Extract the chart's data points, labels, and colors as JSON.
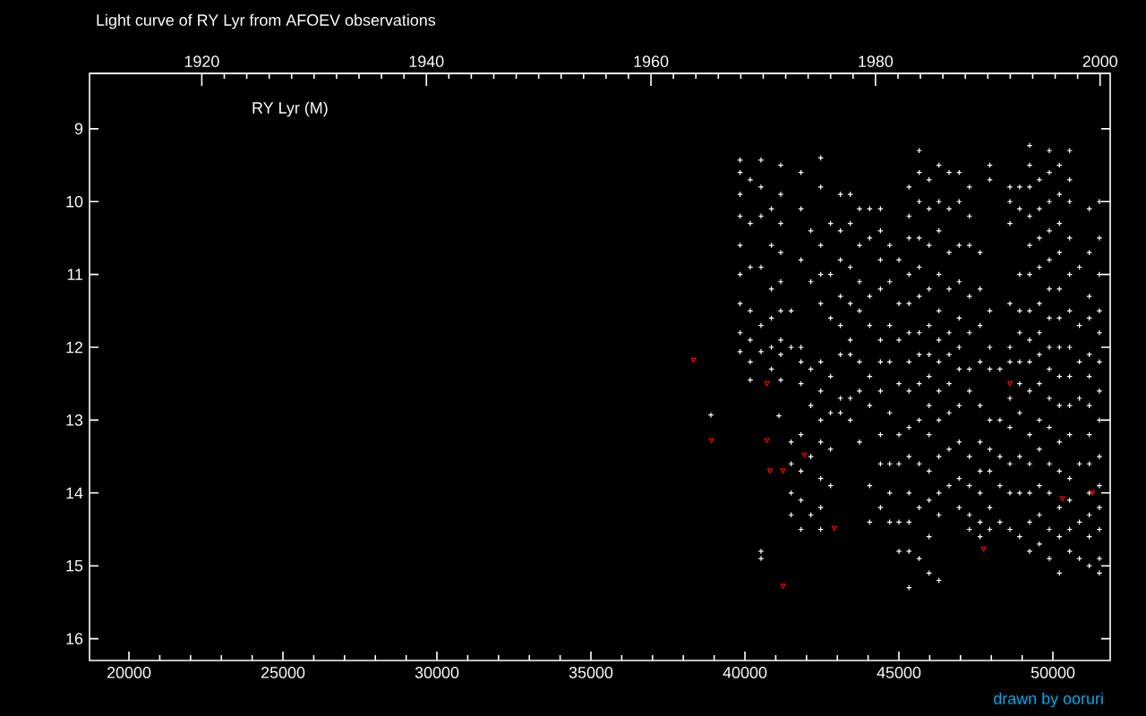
{
  "chart_data": {
    "type": "scatter",
    "title": "Light curve of RY Lyr from AFOEV observations",
    "annotations": [
      "RY Lyr (M)",
      "drawn by ooruri"
    ],
    "xlim": [
      18720,
      51860
    ],
    "xticks": [
      20000,
      25000,
      30000,
      35000,
      40000,
      45000,
      50000
    ],
    "x2lim": [
      1910,
      2000.9
    ],
    "x2ticks": [
      1920,
      1940,
      1960,
      1980,
      2000
    ],
    "ylim": [
      16.3,
      8.24
    ],
    "yticks": [
      9,
      10,
      11,
      12,
      13,
      14,
      15,
      16
    ],
    "marker": "cross",
    "series": [
      {
        "color": "#ffffff",
        "x": [
          38894,
          41103,
          39844,
          39844,
          39844,
          39844,
          39844,
          39844,
          39844,
          39844,
          39844,
          40173,
          40173,
          40173,
          40173,
          40173,
          40173,
          40173,
          40522,
          40522,
          40522,
          40522,
          40522,
          40522,
          40522,
          40522,
          40860,
          40860,
          40860,
          40860,
          40860,
          40860,
          41162,
          41162,
          41162,
          41162,
          41162,
          41162,
          41162,
          41162,
          41162,
          41500,
          41500,
          41500,
          41500,
          41500,
          41500,
          41820,
          41820,
          41820,
          41820,
          41820,
          41820,
          41820,
          41820,
          41820,
          41820,
          42140,
          42140,
          42140,
          42140,
          42140,
          42140,
          42460,
          42460,
          42460,
          42460,
          42460,
          42460,
          42460,
          42460,
          42460,
          42460,
          42460,
          42460,
          42780,
          42780,
          42780,
          42780,
          42780,
          42780,
          42780,
          43100,
          43100,
          43100,
          43100,
          43100,
          43100,
          43100,
          43100,
          43420,
          43420,
          43420,
          43420,
          43420,
          43420,
          43420,
          43420,
          43720,
          43720,
          43720,
          43720,
          43720,
          43720,
          43720,
          44050,
          44050,
          44050,
          44050,
          44050,
          44050,
          44050,
          44050,
          44400,
          44400,
          44400,
          44400,
          44400,
          44400,
          44400,
          44400,
          44400,
          44400,
          44700,
          44700,
          44700,
          44700,
          44700,
          44700,
          44700,
          44700,
          45000,
          45000,
          45000,
          45000,
          45000,
          45000,
          45000,
          45000,
          45328,
          45328,
          45328,
          45328,
          45328,
          45328,
          45328,
          45328,
          45328,
          45328,
          45328,
          45328,
          45328,
          45328,
          45658,
          45658,
          45658,
          45658,
          45658,
          45658,
          45658,
          45658,
          45658,
          45658,
          45658,
          45658,
          45658,
          45980,
          45980,
          45980,
          45980,
          45980,
          45980,
          45980,
          45980,
          45980,
          45980,
          45980,
          45980,
          45980,
          46298,
          46298,
          46298,
          46298,
          46298,
          46298,
          46298,
          46298,
          46298,
          46298,
          46298,
          46298,
          46298,
          46630,
          46630,
          46630,
          46630,
          46630,
          46630,
          46630,
          46630,
          46630,
          46630,
          46956,
          46956,
          46956,
          46956,
          46956,
          46956,
          46956,
          46956,
          46956,
          46956,
          46956,
          47290,
          47290,
          47290,
          47290,
          47290,
          47290,
          47290,
          47290,
          47290,
          47290,
          47290,
          47635,
          47635,
          47635,
          47635,
          47635,
          47635,
          47635,
          47635,
          47635,
          47635,
          47950,
          47950,
          47950,
          47950,
          47950,
          47950,
          47950,
          47950,
          47950,
          47950,
          48280,
          48280,
          48280,
          48280,
          48280,
          48604,
          48604,
          48604,
          48604,
          48604,
          48604,
          48604,
          48604,
          48604,
          48604,
          48604,
          48920,
          48920,
          48920,
          48920,
          48920,
          48920,
          48920,
          48920,
          48920,
          48920,
          48920,
          49243,
          49243,
          49243,
          49243,
          49243,
          49243,
          49243,
          49243,
          49243,
          49243,
          49243,
          49243,
          49243,
          49243,
          49243,
          49560,
          49560,
          49560,
          49560,
          49560,
          49560,
          49560,
          49560,
          49560,
          49560,
          49560,
          49560,
          49560,
          49883,
          49883,
          49883,
          49883,
          49883,
          49883,
          49883,
          49883,
          49883,
          49883,
          49883,
          49883,
          49883,
          49883,
          49883,
          50210,
          50210,
          50210,
          50210,
          50210,
          50210,
          50210,
          50210,
          50210,
          50210,
          50210,
          50210,
          50210,
          50210,
          50542,
          50542,
          50542,
          50542,
          50542,
          50542,
          50542,
          50542,
          50542,
          50542,
          50542,
          50542,
          50542,
          50542,
          50860,
          50860,
          50860,
          50860,
          50860,
          50860,
          50860,
          51181,
          51181,
          51181,
          51181,
          51181,
          51181,
          51181,
          51181,
          51181,
          51181,
          51181,
          51181,
          51181,
          51510,
          51510,
          51510,
          51510,
          51510,
          51510,
          51510,
          51510,
          51510,
          51510,
          51510,
          51510,
          51510,
          51510
        ],
        "values": [
          12.93,
          12.94,
          9.43,
          9.6,
          9.9,
          10.2,
          10.6,
          11.0,
          11.4,
          11.8,
          12.06,
          9.7,
          10.3,
          10.9,
          11.5,
          11.9,
          12.2,
          12.45,
          9.43,
          9.8,
          10.2,
          10.9,
          11.7,
          12.06,
          14.8,
          14.9,
          10.1,
          10.6,
          11.2,
          11.6,
          12.0,
          12.3,
          9.5,
          9.9,
          10.3,
          10.7,
          11.1,
          11.5,
          11.9,
          12.1,
          12.45,
          11.5,
          12.0,
          13.3,
          13.6,
          14.0,
          14.3,
          9.6,
          10.1,
          10.8,
          12.0,
          12.2,
          12.5,
          13.2,
          13.7,
          14.1,
          14.5,
          10.4,
          11.1,
          12.3,
          12.8,
          13.5,
          14.3,
          9.4,
          9.8,
          10.6,
          11.0,
          11.4,
          12.2,
          12.6,
          13.0,
          13.3,
          13.8,
          14.2,
          14.5,
          10.3,
          11.0,
          11.6,
          12.4,
          12.9,
          13.4,
          13.9,
          9.9,
          10.4,
          10.8,
          11.3,
          11.7,
          12.1,
          12.7,
          12.9,
          9.9,
          10.3,
          10.9,
          11.4,
          11.9,
          12.1,
          12.7,
          13.0,
          10.1,
          10.6,
          11.1,
          11.5,
          12.2,
          12.6,
          13.3,
          10.1,
          10.5,
          11.3,
          11.7,
          12.4,
          12.8,
          13.9,
          14.4,
          10.1,
          10.4,
          10.8,
          11.2,
          11.9,
          12.2,
          12.6,
          13.2,
          13.6,
          14.2,
          10.6,
          11.1,
          11.7,
          12.2,
          12.9,
          13.6,
          14.0,
          14.4,
          10.8,
          11.4,
          11.9,
          12.5,
          13.2,
          13.6,
          14.4,
          14.8,
          9.8,
          10.2,
          10.5,
          11.0,
          11.4,
          11.8,
          12.2,
          12.6,
          13.1,
          13.5,
          14.0,
          14.4,
          14.8,
          15.3,
          9.3,
          9.6,
          10.0,
          10.5,
          10.9,
          11.3,
          11.8,
          12.1,
          12.5,
          13.0,
          13.6,
          14.2,
          14.9,
          9.7,
          10.1,
          10.6,
          11.2,
          11.7,
          12.1,
          12.4,
          12.8,
          13.2,
          13.7,
          14.1,
          14.6,
          15.1,
          9.5,
          10.0,
          10.4,
          11.0,
          11.5,
          11.9,
          12.2,
          12.6,
          13.0,
          13.5,
          14.0,
          14.3,
          15.2,
          9.6,
          10.1,
          10.7,
          11.2,
          11.8,
          12.1,
          12.5,
          12.9,
          13.4,
          13.9,
          9.6,
          10.0,
          10.6,
          11.1,
          11.6,
          12.0,
          12.3,
          12.8,
          13.3,
          13.8,
          14.2,
          9.8,
          10.2,
          10.6,
          11.3,
          11.8,
          12.3,
          12.6,
          13.5,
          13.9,
          14.3,
          14.5,
          10.7,
          11.2,
          11.7,
          12.2,
          12.8,
          13.3,
          13.7,
          14.0,
          14.4,
          14.6,
          9.5,
          9.7,
          11.5,
          12.0,
          12.3,
          13.0,
          13.4,
          13.7,
          14.2,
          14.5,
          12.3,
          13.0,
          13.5,
          13.9,
          14.4,
          9.8,
          10.0,
          10.3,
          11.4,
          12.0,
          12.2,
          12.7,
          13.1,
          13.6,
          14.0,
          14.5,
          9.8,
          10.1,
          11.0,
          11.5,
          11.8,
          12.2,
          12.5,
          12.9,
          13.5,
          14.0,
          14.6,
          9.23,
          9.5,
          9.8,
          10.2,
          10.6,
          11.0,
          11.5,
          11.9,
          12.2,
          12.6,
          13.2,
          13.6,
          14.0,
          14.4,
          14.8,
          9.7,
          10.1,
          10.5,
          10.9,
          11.4,
          11.8,
          12.1,
          12.5,
          13.0,
          13.4,
          13.9,
          14.3,
          14.7,
          9.3,
          9.6,
          10.0,
          10.4,
          10.8,
          11.2,
          11.6,
          12.0,
          12.3,
          12.7,
          13.1,
          13.6,
          14.0,
          14.5,
          14.9,
          9.5,
          9.9,
          10.3,
          10.7,
          11.2,
          11.6,
          12.0,
          12.4,
          12.8,
          13.3,
          13.7,
          14.2,
          14.6,
          15.1,
          9.3,
          9.7,
          10.0,
          10.5,
          11.0,
          11.5,
          12.0,
          12.4,
          12.8,
          13.2,
          13.8,
          14.1,
          14.5,
          14.8,
          10.9,
          11.7,
          12.2,
          12.7,
          13.6,
          14.4,
          14.9,
          10.1,
          10.7,
          11.3,
          11.6,
          12.1,
          12.4,
          12.8,
          13.2,
          13.6,
          14.0,
          14.3,
          14.6,
          15.0,
          10.0,
          10.5,
          11.0,
          11.5,
          11.8,
          12.2,
          12.6,
          13.0,
          13.5,
          13.9,
          14.2,
          14.5,
          14.9,
          15.1
        ]
      },
      {
        "color": "#ff0000",
        "marker": "triangle",
        "x": [
          38332,
          38914,
          40716,
          40716,
          40813,
          41240,
          41937,
          42906,
          41240,
          48604,
          47751,
          50309,
          51278
        ],
        "values": [
          12.17,
          13.27,
          12.49,
          13.27,
          13.69,
          13.69,
          13.47,
          14.48,
          15.27,
          12.49,
          14.76,
          14.07,
          13.99
        ]
      }
    ]
  }
}
